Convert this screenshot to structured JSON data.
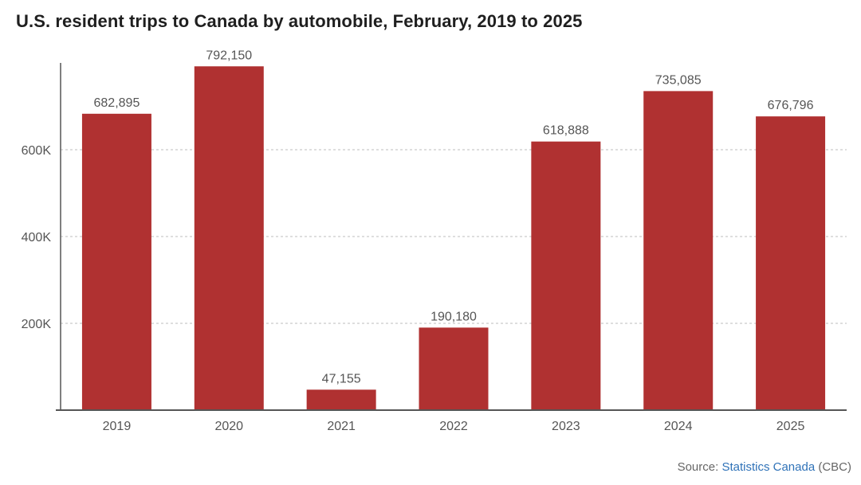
{
  "chart_data": {
    "type": "bar",
    "title": "U.S. resident trips to Canada by automobile, February, 2019 to 2025",
    "categories": [
      "2019",
      "2020",
      "2021",
      "2022",
      "2023",
      "2024",
      "2025"
    ],
    "values": [
      682895,
      792150,
      47155,
      190180,
      618888,
      735085,
      676796
    ],
    "data_labels": [
      "682,895",
      "792,150",
      "47,155",
      "190,180",
      "618,888",
      "735,085",
      "676,796"
    ],
    "ylim": [
      0,
      800000
    ],
    "yticks": [
      200000,
      400000,
      600000
    ],
    "ytick_labels": [
      "200K",
      "400K",
      "600K"
    ],
    "xlabel": "",
    "ylabel": "",
    "grid": true,
    "bar_color": "#b03131"
  },
  "source": {
    "prefix": "Source: ",
    "link_text": "Statistics Canada",
    "suffix": " (CBC)"
  }
}
